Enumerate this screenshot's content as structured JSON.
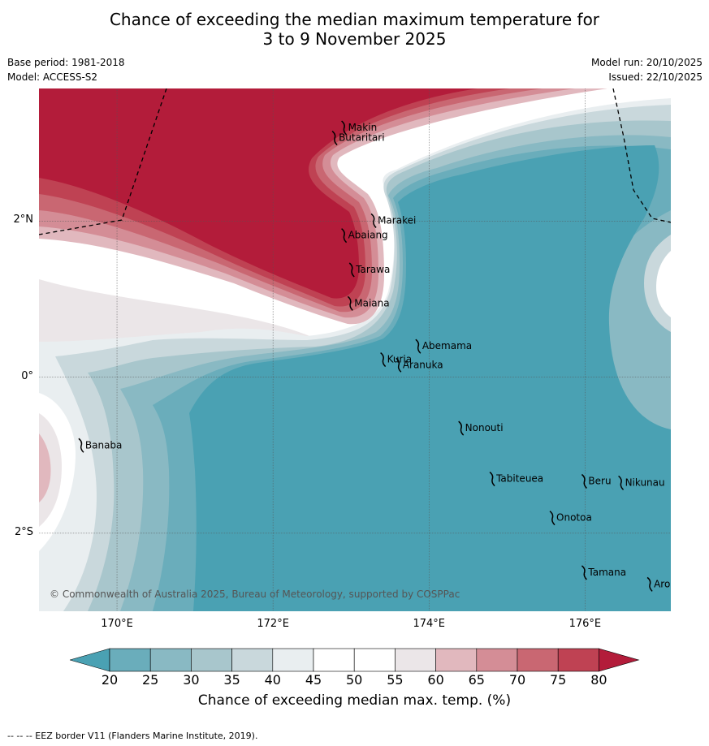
{
  "title": {
    "line1": "Chance of exceeding the median maximum temperature for",
    "line2": "3 to 9 November 2025"
  },
  "meta": {
    "base_period": "Base period: 1981-2018",
    "model": "Model: ACCESS-S2",
    "model_run": "Model run: 20/10/2025",
    "issued": "Issued: 22/10/2025"
  },
  "copyright": "© Commonwealth of Australia 2025, Bureau of Meteorology, supported by COSPPac",
  "axes": {
    "x_ticks": [
      "170°E",
      "172°E",
      "174°E",
      "176°E"
    ],
    "y_ticks": [
      "2°N",
      "0°",
      "2°S"
    ],
    "lon_range": [
      169,
      177.1
    ],
    "lat_range": [
      -3,
      3.7
    ]
  },
  "places": [
    {
      "name": "Makin",
      "lon": 172.9,
      "lat": 3.2
    },
    {
      "name": "Butaritari",
      "lon": 172.78,
      "lat": 3.07
    },
    {
      "name": "Marakei",
      "lon": 173.28,
      "lat": 2.01
    },
    {
      "name": "Abaiang",
      "lon": 172.9,
      "lat": 1.82
    },
    {
      "name": "Tarawa",
      "lon": 173.0,
      "lat": 1.38
    },
    {
      "name": "Maiana",
      "lon": 172.98,
      "lat": 0.95
    },
    {
      "name": "Abemama",
      "lon": 173.85,
      "lat": 0.4
    },
    {
      "name": "Kuria",
      "lon": 173.4,
      "lat": 0.23
    },
    {
      "name": "Aranuka",
      "lon": 173.6,
      "lat": 0.16
    },
    {
      "name": "Nonouti",
      "lon": 174.4,
      "lat": -0.65
    },
    {
      "name": "Banaba",
      "lon": 169.53,
      "lat": -0.87
    },
    {
      "name": "Tabiteuea",
      "lon": 174.8,
      "lat": -1.3
    },
    {
      "name": "Beru",
      "lon": 175.98,
      "lat": -1.33
    },
    {
      "name": "Nikunau",
      "lon": 176.45,
      "lat": -1.35
    },
    {
      "name": "Onotoa",
      "lon": 175.57,
      "lat": -1.8
    },
    {
      "name": "Tamana",
      "lon": 175.98,
      "lat": -2.5
    },
    {
      "name": "Arorae",
      "lon": 176.82,
      "lat": -2.65
    }
  ],
  "colorbar": {
    "title": "Chance of exceeding median max. temp. (%)",
    "ticks": [
      "20",
      "25",
      "30",
      "35",
      "40",
      "45",
      "50",
      "55",
      "60",
      "65",
      "70",
      "75",
      "80"
    ],
    "colors": [
      "#4aa1b3",
      "#6aadbb",
      "#89b9c3",
      "#a8c6cc",
      "#c9d8dc",
      "#e9eef0",
      "#ffffff",
      "#ffffff",
      "#ebe6e8",
      "#e1b8be",
      "#d48d96",
      "#c96772",
      "#bf4253",
      "#b31c3a"
    ]
  },
  "footnote": "--  --  -- EEZ border V11 (Flanders Marine Institute, 2019)."
}
